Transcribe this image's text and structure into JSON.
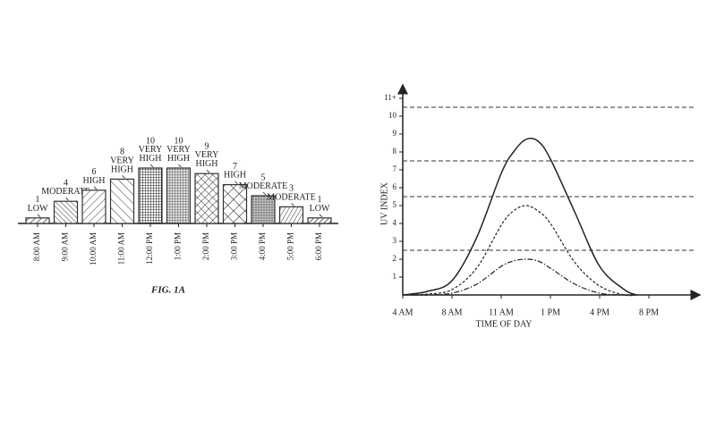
{
  "chart_data": [
    {
      "type": "bar",
      "caption": "FIG. 1A",
      "categories": [
        "8:00 AM",
        "9:00 AM",
        "10:00 AM",
        "11:00 AM",
        "12:00 PM",
        "1:00 PM",
        "2:00 PM",
        "3:00 PM",
        "4:00 PM",
        "5:00 PM",
        "6:00 PM"
      ],
      "values": [
        1,
        4,
        6,
        8,
        10,
        10,
        9,
        7,
        5,
        3,
        1
      ],
      "levels": [
        "LOW",
        "MODERATE",
        "HIGH",
        "VERY HIGH",
        "VERY HIGH",
        "VERY HIGH",
        "VERY HIGH",
        "HIGH",
        "MODERATE",
        "MODERATE",
        "LOW"
      ],
      "ylim": [
        0,
        10
      ],
      "color": "#333333"
    },
    {
      "type": "line",
      "x_label": "TIME OF DAY",
      "y_label": "UV INDEX",
      "xlim": [
        0,
        6
      ],
      "ylim": [
        0,
        12
      ],
      "xticks": [
        {
          "value": 0,
          "label": "4 AM"
        },
        {
          "value": 1,
          "label": "8 AM"
        },
        {
          "value": 2,
          "label": "11 AM"
        },
        {
          "value": 3,
          "label": "1 PM"
        },
        {
          "value": 4,
          "label": "4 PM"
        },
        {
          "value": 5,
          "label": "8 PM"
        }
      ],
      "yticks": [
        1,
        2,
        3,
        4,
        5,
        6,
        7,
        8,
        9,
        10,
        {
          "value": 11,
          "label": "11+"
        }
      ],
      "thresholds": [
        2.5,
        5.5,
        7.5,
        10.5
      ],
      "x": [
        0,
        0.5,
        1,
        1.5,
        2,
        2.25,
        2.5,
        2.75,
        3,
        3.5,
        4,
        4.5,
        4.75
      ],
      "series": [
        {
          "color": "#222222",
          "dash": "solid",
          "values": [
            0,
            0.2,
            0.8,
            3.2,
            6.8,
            8.0,
            8.7,
            8.6,
            7.6,
            4.6,
            1.6,
            0.3,
            0
          ]
        },
        {
          "color": "#222222",
          "dash": "dashed",
          "values": [
            0,
            0.05,
            0.3,
            1.5,
            3.9,
            4.7,
            5.0,
            4.7,
            4.0,
            1.8,
            0.5,
            0,
            0
          ]
        },
        {
          "color": "#222222",
          "dash": "dashdot",
          "values": [
            0,
            0,
            0.1,
            0.6,
            1.6,
            1.9,
            2.0,
            1.9,
            1.5,
            0.6,
            0.1,
            0,
            0
          ]
        }
      ]
    }
  ]
}
